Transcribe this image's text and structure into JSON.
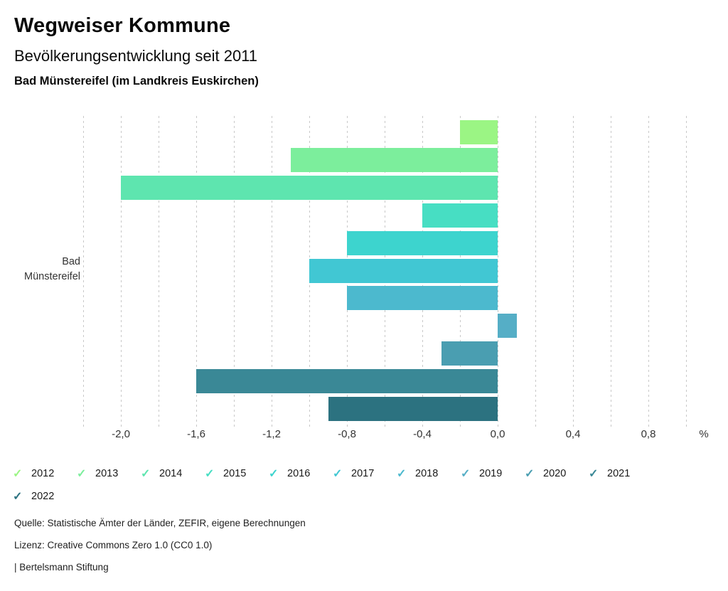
{
  "header": {
    "title": "Wegweiser Kommune",
    "subtitle": "Bevölkerungsentwicklung seit 2011",
    "region_label": "Bad Münstereifel (im Landkreis Euskirchen)"
  },
  "chart_data": {
    "type": "bar",
    "orientation": "horizontal",
    "title": "Bevölkerungsentwicklung seit 2011",
    "category": "Bad Münstereifel",
    "category_label_lines": [
      "Bad",
      "Münstereifel"
    ],
    "unit": "%",
    "series": [
      {
        "name": "2012",
        "value": -0.2,
        "color": "#9bf584"
      },
      {
        "name": "2013",
        "value": -1.1,
        "color": "#7cee9c"
      },
      {
        "name": "2014",
        "value": -2.0,
        "color": "#5ee5af"
      },
      {
        "name": "2015",
        "value": -0.4,
        "color": "#47dec3"
      },
      {
        "name": "2016",
        "value": -0.8,
        "color": "#3dd4ce"
      },
      {
        "name": "2017",
        "value": -1.0,
        "color": "#41c7d3"
      },
      {
        "name": "2018",
        "value": -0.8,
        "color": "#4cb9ce"
      },
      {
        "name": "2019",
        "value": 0.1,
        "color": "#55aec6"
      },
      {
        "name": "2020",
        "value": -0.3,
        "color": "#4a9eb1"
      },
      {
        "name": "2021",
        "value": -1.6,
        "color": "#3a8896"
      },
      {
        "name": "2022",
        "value": -0.9,
        "color": "#2c7280"
      }
    ],
    "x_ticks": [
      {
        "value": -2.0,
        "label": "-2,0"
      },
      {
        "value": -1.6,
        "label": "-1,6"
      },
      {
        "value": -1.2,
        "label": "-1,2"
      },
      {
        "value": -0.8,
        "label": "-0,8"
      },
      {
        "value": -0.4,
        "label": "-0,4"
      },
      {
        "value": 0.0,
        "label": "0,0"
      },
      {
        "value": 0.4,
        "label": "0,4"
      },
      {
        "value": 0.8,
        "label": "0,8"
      }
    ],
    "grid": {
      "min": -2.2,
      "max": 1.0,
      "step": 0.2,
      "color": "#c8c8c8"
    },
    "xlim": [
      -2.2,
      1.1
    ],
    "legend_position": "bottom"
  },
  "legend": {
    "rows": [
      [
        {
          "label": "2012",
          "color": "#9bf584"
        },
        {
          "label": "2013",
          "color": "#7cee9c"
        },
        {
          "label": "2014",
          "color": "#5ee5af"
        },
        {
          "label": "2015",
          "color": "#47dec3"
        },
        {
          "label": "2016",
          "color": "#3dd4ce"
        },
        {
          "label": "2017",
          "color": "#41c7d3"
        },
        {
          "label": "2018",
          "color": "#4cb9ce"
        },
        {
          "label": "2019",
          "color": "#55aec6"
        },
        {
          "label": "2020",
          "color": "#4a9eb1"
        },
        {
          "label": "2021",
          "color": "#3a8896"
        }
      ],
      [
        {
          "label": "2022",
          "color": "#2c7280"
        }
      ]
    ],
    "check_glyph": "✓"
  },
  "footer": {
    "source": "Quelle: Statistische Ämter der Länder, ZEFIR, eigene Berechnungen",
    "license": "Lizenz: Creative Commons Zero 1.0 (CC0 1.0)",
    "attribution": "| Bertelsmann Stiftung"
  }
}
